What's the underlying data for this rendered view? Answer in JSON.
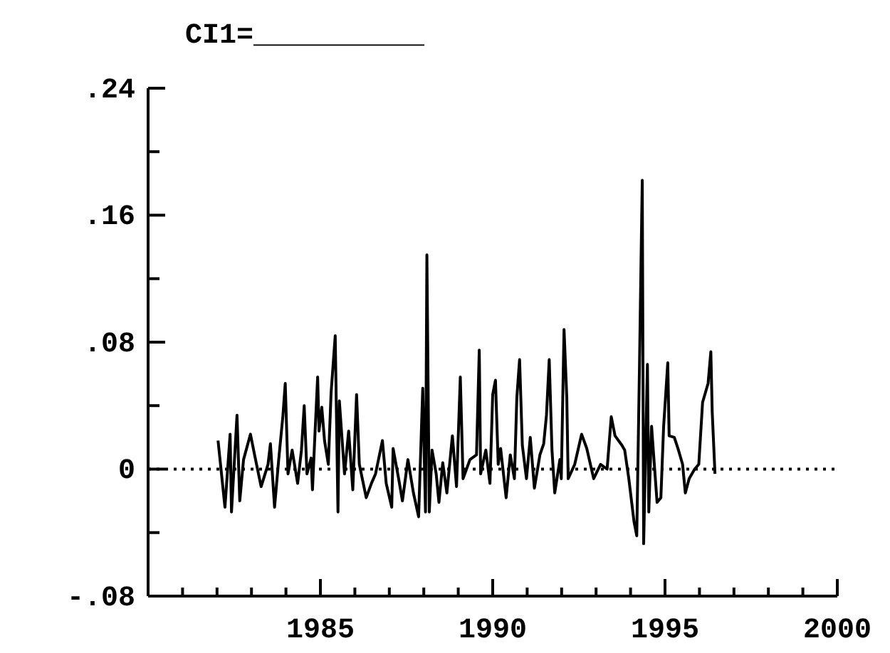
{
  "chart_data": {
    "type": "line",
    "title": "CI1=__________",
    "x": [
      1982.03,
      1982.23,
      1982.38,
      1982.42,
      1982.58,
      1982.66,
      1982.77,
      1982.97,
      1983.09,
      1983.28,
      1983.48,
      1983.55,
      1983.67,
      1983.79,
      1983.91,
      1983.98,
      1984.06,
      1984.18,
      1984.34,
      1984.45,
      1984.53,
      1984.61,
      1984.73,
      1984.77,
      1984.84,
      1984.92,
      1984.96,
      1985.04,
      1985.12,
      1985.23,
      1985.31,
      1985.43,
      1985.51,
      1985.55,
      1985.7,
      1985.82,
      1985.94,
      1986.05,
      1986.13,
      1986.33,
      1986.48,
      1986.6,
      1986.8,
      1986.91,
      1987.07,
      1987.11,
      1987.27,
      1987.38,
      1987.54,
      1987.7,
      1987.85,
      1987.97,
      1988.05,
      1988.09,
      1988.16,
      1988.24,
      1988.36,
      1988.44,
      1988.55,
      1988.67,
      1988.83,
      1988.95,
      1989.06,
      1989.14,
      1989.34,
      1989.53,
      1989.61,
      1989.65,
      1989.8,
      1989.92,
      1990.0,
      1990.08,
      1990.16,
      1990.23,
      1990.39,
      1990.51,
      1990.63,
      1990.7,
      1990.78,
      1990.86,
      1990.98,
      1991.09,
      1991.21,
      1991.37,
      1991.48,
      1991.56,
      1991.64,
      1991.72,
      1991.8,
      1991.95,
      1991.99,
      1992.07,
      1992.15,
      1992.19,
      1992.38,
      1992.58,
      1992.73,
      1992.93,
      1993.13,
      1993.32,
      1993.44,
      1993.55,
      1993.75,
      1993.83,
      1993.95,
      1994.1,
      1994.18,
      1994.26,
      1994.34,
      1994.38,
      1994.49,
      1994.53,
      1994.61,
      1994.69,
      1994.77,
      1994.88,
      1994.96,
      1995.08,
      1995.12,
      1995.27,
      1995.39,
      1995.51,
      1995.59,
      1995.7,
      1995.86,
      1995.98,
      1996.09,
      1996.25,
      1996.33,
      1996.37,
      1996.45
    ],
    "series": [
      {
        "color": "#000000",
        "values": [
          0.018,
          -0.024,
          0.022,
          -0.027,
          0.034,
          -0.02,
          0.006,
          0.022,
          0.009,
          -0.011,
          0.003,
          0.016,
          -0.024,
          0.006,
          0.033,
          0.054,
          -0.003,
          0.012,
          -0.009,
          0.012,
          0.04,
          -0.003,
          0.007,
          -0.013,
          0.021,
          0.058,
          0.024,
          0.039,
          0.018,
          0.003,
          0.048,
          0.084,
          -0.027,
          0.043,
          -0.003,
          0.024,
          -0.013,
          0.047,
          0.003,
          -0.018,
          -0.009,
          -0.003,
          0.018,
          -0.009,
          -0.024,
          0.013,
          -0.006,
          -0.02,
          0.006,
          -0.015,
          -0.03,
          0.051,
          -0.027,
          0.135,
          -0.027,
          0.012,
          -0.003,
          -0.021,
          0.004,
          -0.015,
          0.021,
          -0.011,
          0.058,
          -0.006,
          0.006,
          0.009,
          0.075,
          -0.003,
          0.012,
          -0.009,
          0.047,
          0.056,
          0.003,
          0.013,
          -0.018,
          0.009,
          -0.006,
          0.045,
          0.069,
          0.015,
          -0.006,
          0.02,
          -0.012,
          0.009,
          0.016,
          0.034,
          0.069,
          0.012,
          -0.015,
          0.006,
          -0.006,
          0.088,
          0.045,
          -0.006,
          0.003,
          0.022,
          0.013,
          -0.006,
          0.003,
          0,
          0.033,
          0.021,
          0.015,
          0.012,
          -0.006,
          -0.033,
          -0.042,
          0.066,
          0.182,
          -0.047,
          0.066,
          -0.027,
          0.027,
          0.003,
          -0.021,
          -0.018,
          0.027,
          0.067,
          0.021,
          0.02,
          0.012,
          0.003,
          -0.015,
          -0.006,
          0,
          0.003,
          0.042,
          0.054,
          0.074,
          0.036,
          -0.003
        ]
      }
    ],
    "xlim": [
      1980,
      2000
    ],
    "xticks": [
      {
        "value": 1981,
        "label": null
      },
      {
        "value": 1982,
        "label": null
      },
      {
        "value": 1983,
        "label": null
      },
      {
        "value": 1984,
        "label": null
      },
      1985,
      {
        "value": 1986,
        "label": null
      },
      {
        "value": 1987,
        "label": null
      },
      {
        "value": 1988,
        "label": null
      },
      {
        "value": 1989,
        "label": null
      },
      1990,
      {
        "value": 1991,
        "label": null
      },
      {
        "value": 1992,
        "label": null
      },
      {
        "value": 1993,
        "label": null
      },
      {
        "value": 1994,
        "label": null
      },
      1995,
      {
        "value": 1996,
        "label": null
      },
      {
        "value": 1997,
        "label": null
      },
      {
        "value": 1998,
        "label": null
      },
      {
        "value": 1999,
        "label": null
      },
      2000
    ],
    "ylim": [
      -0.08,
      0.24
    ],
    "yticks": [
      {
        "value": -0.08,
        "label": "-.08"
      },
      {
        "value": -0.04,
        "label": null
      },
      0,
      {
        "value": 0.04,
        "label": null
      },
      {
        "value": 0.08,
        "label": ".08"
      },
      {
        "value": 0.12,
        "label": null
      },
      {
        "value": 0.16,
        "label": ".16"
      },
      {
        "value": 0.2,
        "label": null
      },
      {
        "value": 0.24,
        "label": ".24"
      }
    ],
    "ref_lines": [
      {
        "axis": "y",
        "value": 0,
        "line_style": "dotted",
        "color": "#000000"
      }
    ],
    "marker": "none",
    "line_style": "solid"
  }
}
